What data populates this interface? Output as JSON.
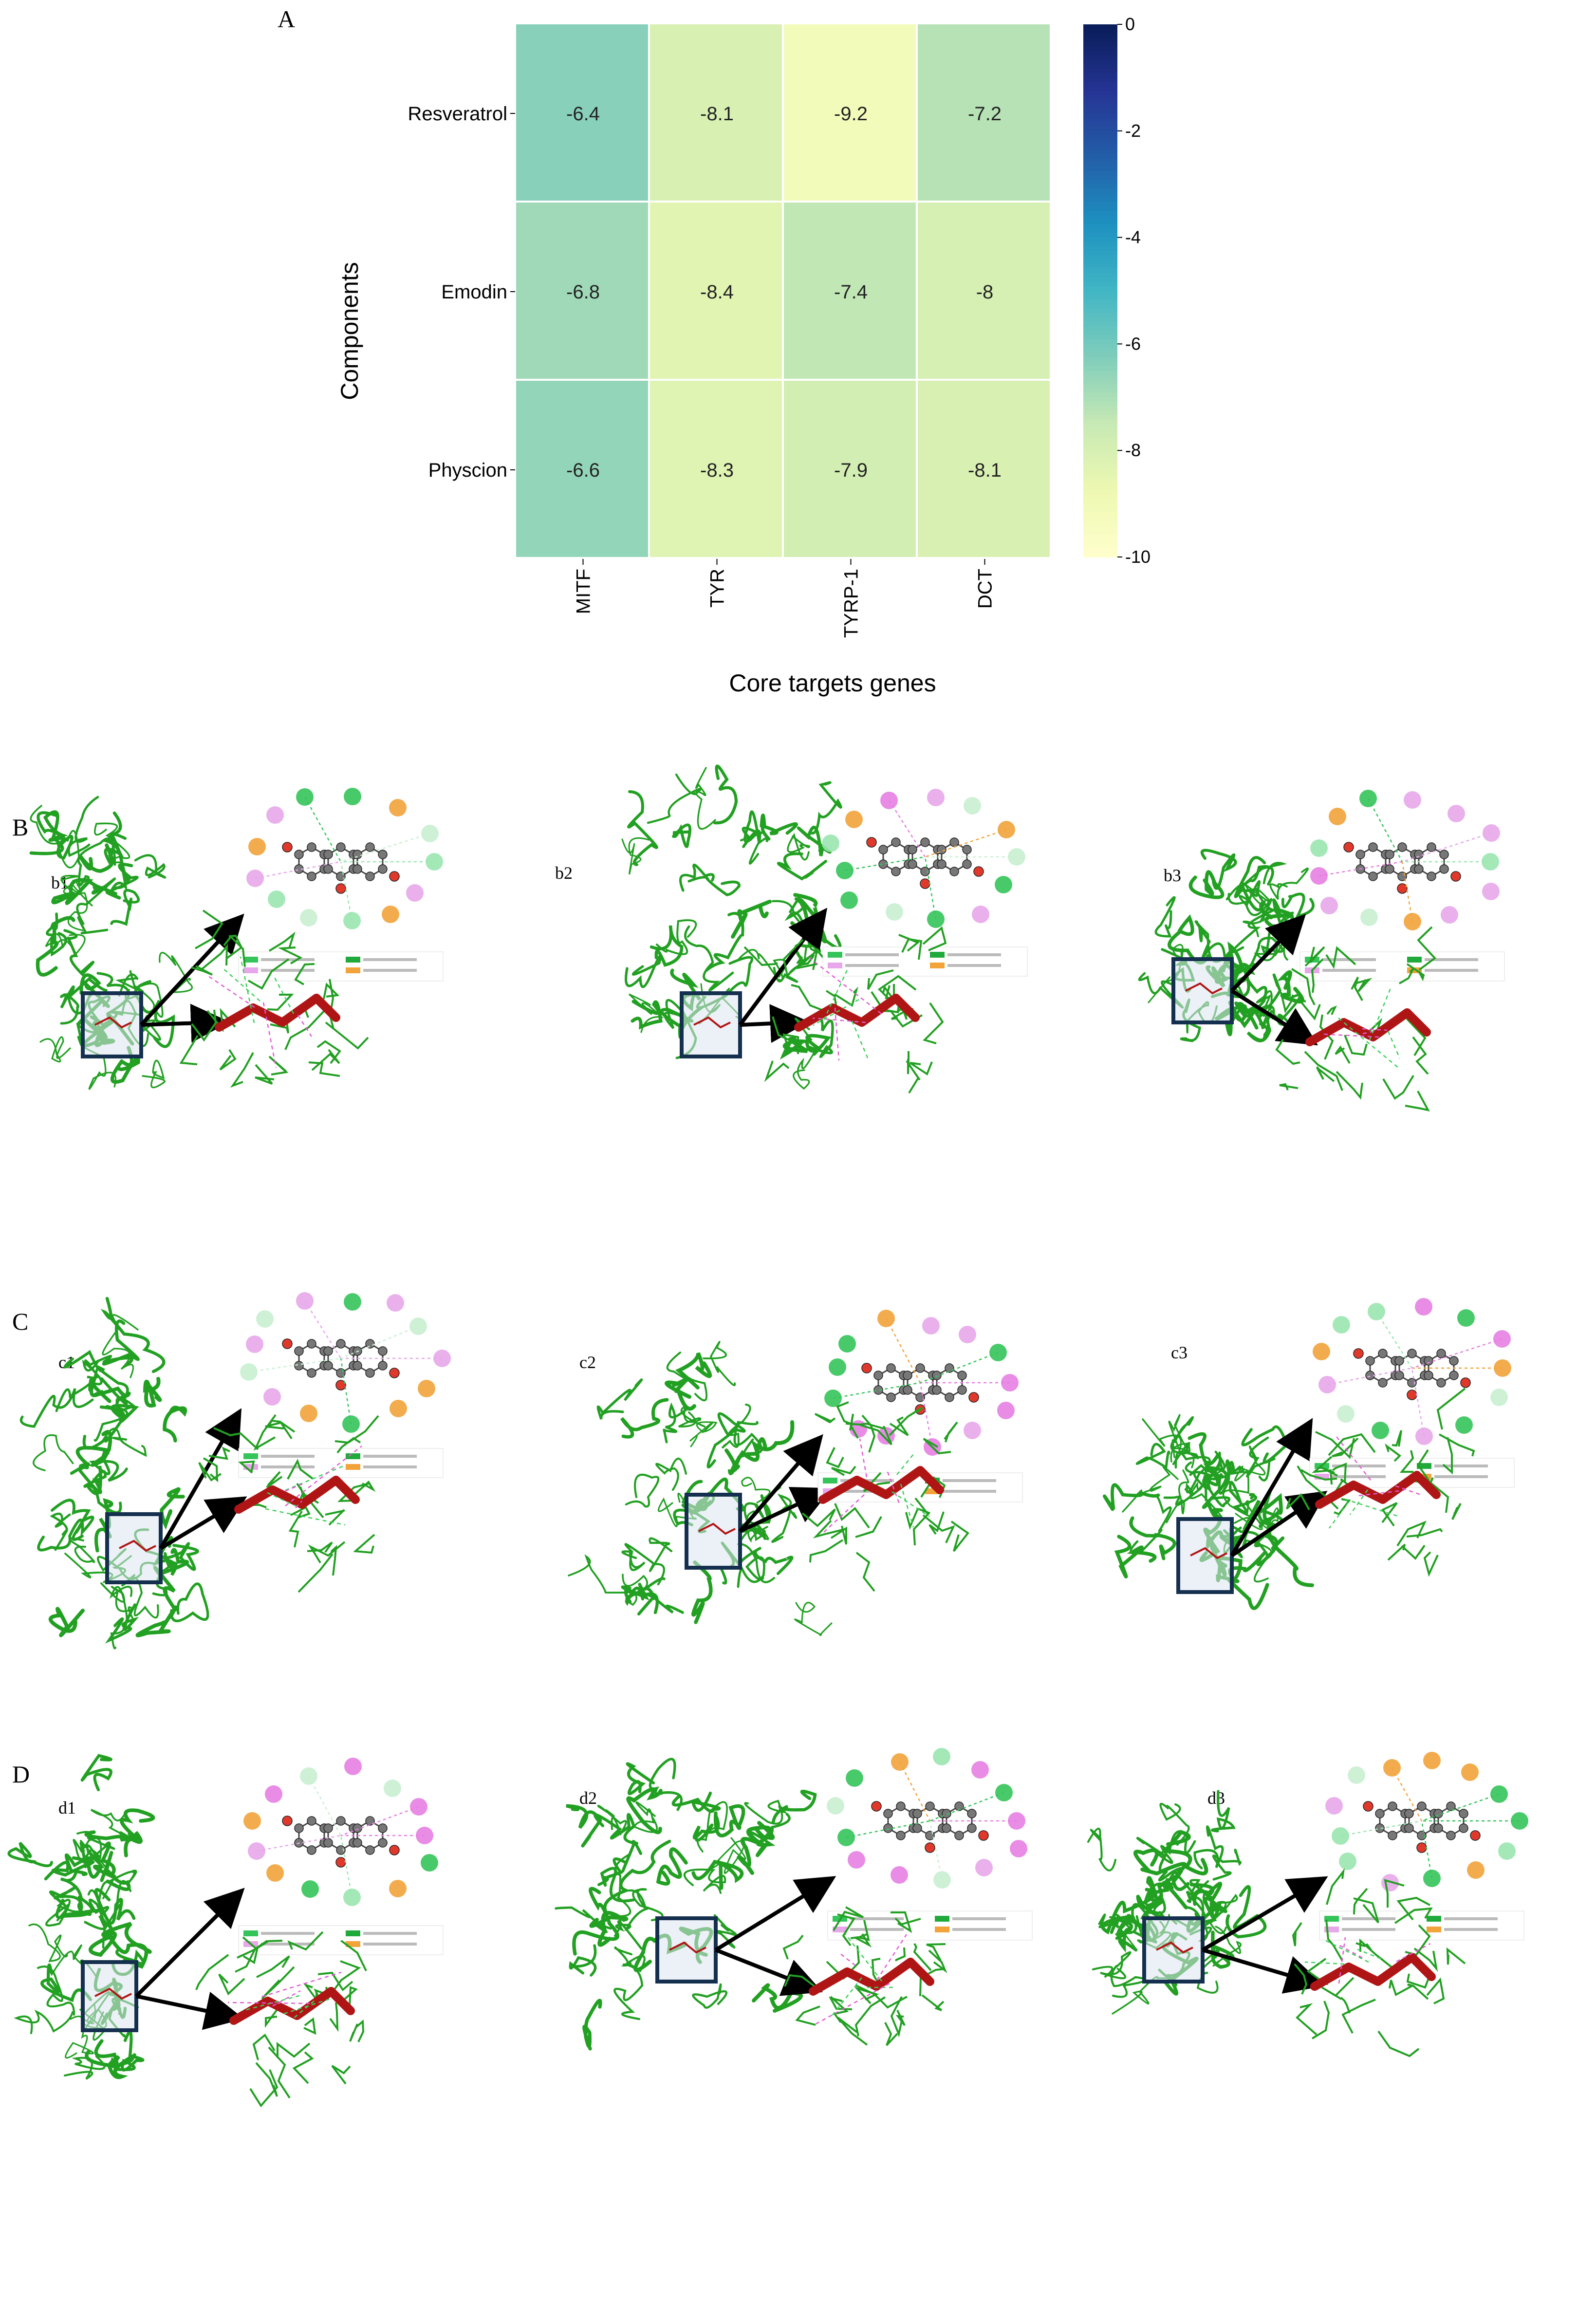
{
  "panel_labels": {
    "A": "A",
    "B": "B",
    "C": "C",
    "D": "D"
  },
  "sub_labels": {
    "b1": "b1",
    "b2": "b2",
    "b3": "b3",
    "c1": "c1",
    "c2": "c2",
    "c3": "c3",
    "d1": "d1",
    "d2": "d2",
    "d3": "d3"
  },
  "chart_data": {
    "type": "heatmap",
    "title": "",
    "xlabel": "Core targets genes",
    "ylabel": "Components",
    "x": [
      "MITF",
      "TYR",
      "TYRP-1",
      "DCT"
    ],
    "y": [
      "Resveratrol",
      "Emodin",
      "Physcion"
    ],
    "values": [
      [
        -6.4,
        -8.1,
        -9.2,
        -7.2
      ],
      [
        -6.8,
        -8.4,
        -7.4,
        -8
      ],
      [
        -6.6,
        -8.3,
        -7.9,
        -8.1
      ]
    ],
    "colorbar": {
      "min": -10,
      "max": 0,
      "ticks": [
        "0",
        "-2",
        "-4",
        "-6",
        "-8",
        "-10"
      ],
      "colormap": "YlGnBu_r"
    }
  },
  "colors": {
    "ribbon": "#22a022",
    "ligand": "#b01515",
    "box": "#15304f"
  }
}
